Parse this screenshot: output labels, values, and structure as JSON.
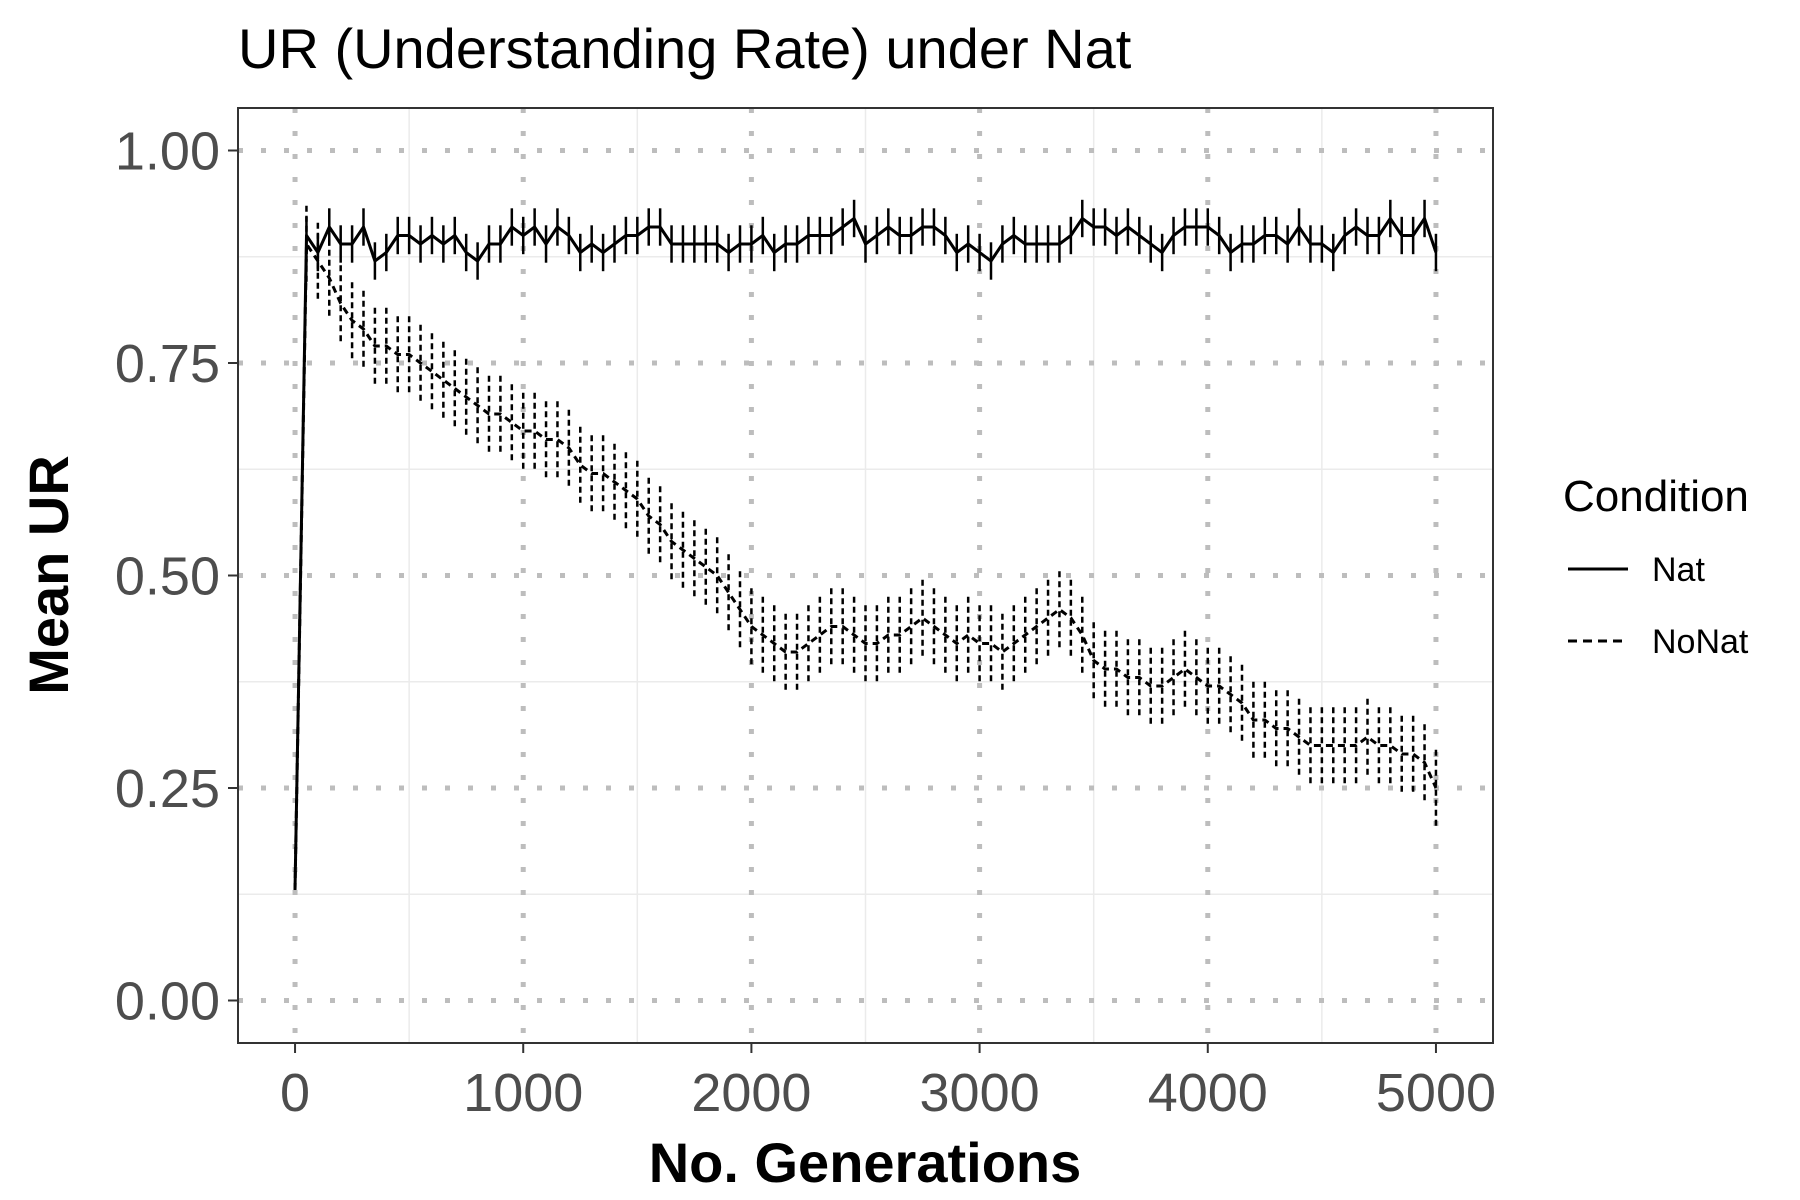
{
  "chart_data": {
    "type": "line",
    "title": "UR (Understanding Rate) under Nat",
    "xlabel": "No. Generations",
    "ylabel": "Mean UR",
    "xlim": [
      -250,
      5250
    ],
    "ylim": [
      -0.05,
      1.05
    ],
    "x_ticks": [
      0,
      1000,
      2000,
      3000,
      4000,
      5000
    ],
    "x_tick_labels": [
      "0",
      "1000",
      "2000",
      "3000",
      "4000",
      "5000"
    ],
    "y_ticks": [
      0.0,
      0.25,
      0.5,
      0.75,
      1.0
    ],
    "y_tick_labels": [
      "0.00",
      "0.25",
      "0.50",
      "0.75",
      "1.00"
    ],
    "grid": true,
    "legend": {
      "title": "Condition",
      "position": "right"
    },
    "series": [
      {
        "name": "Nat",
        "line_style": "solid",
        "error_bar_halfwidth": 0.022,
        "x": [
          0,
          50,
          100,
          150,
          200,
          250,
          300,
          350,
          400,
          450,
          500,
          550,
          600,
          650,
          700,
          750,
          800,
          850,
          900,
          950,
          1000,
          1050,
          1100,
          1150,
          1200,
          1250,
          1300,
          1350,
          1400,
          1450,
          1500,
          1550,
          1600,
          1650,
          1700,
          1750,
          1800,
          1850,
          1900,
          1950,
          2000,
          2050,
          2100,
          2150,
          2200,
          2250,
          2300,
          2350,
          2400,
          2450,
          2500,
          2550,
          2600,
          2650,
          2700,
          2750,
          2800,
          2850,
          2900,
          2950,
          3000,
          3050,
          3100,
          3150,
          3200,
          3250,
          3300,
          3350,
          3400,
          3450,
          3500,
          3550,
          3600,
          3650,
          3700,
          3750,
          3800,
          3850,
          3900,
          3950,
          4000,
          4050,
          4100,
          4150,
          4200,
          4250,
          4300,
          4350,
          4400,
          4450,
          4500,
          4550,
          4600,
          4650,
          4700,
          4750,
          4800,
          4850,
          4900,
          4950,
          5000
        ],
        "y": [
          0.13,
          0.9,
          0.88,
          0.91,
          0.89,
          0.89,
          0.91,
          0.87,
          0.88,
          0.9,
          0.9,
          0.89,
          0.9,
          0.89,
          0.9,
          0.88,
          0.87,
          0.89,
          0.89,
          0.91,
          0.9,
          0.91,
          0.89,
          0.91,
          0.9,
          0.88,
          0.89,
          0.88,
          0.89,
          0.9,
          0.9,
          0.91,
          0.91,
          0.89,
          0.89,
          0.89,
          0.89,
          0.89,
          0.88,
          0.89,
          0.89,
          0.9,
          0.88,
          0.89,
          0.89,
          0.9,
          0.9,
          0.9,
          0.91,
          0.92,
          0.89,
          0.9,
          0.91,
          0.9,
          0.9,
          0.91,
          0.91,
          0.9,
          0.88,
          0.89,
          0.88,
          0.87,
          0.89,
          0.9,
          0.89,
          0.89,
          0.89,
          0.89,
          0.9,
          0.92,
          0.91,
          0.91,
          0.9,
          0.91,
          0.9,
          0.89,
          0.88,
          0.9,
          0.91,
          0.91,
          0.91,
          0.9,
          0.88,
          0.89,
          0.89,
          0.9,
          0.9,
          0.89,
          0.91,
          0.89,
          0.89,
          0.88,
          0.9,
          0.91,
          0.9,
          0.9,
          0.92,
          0.9,
          0.9,
          0.92,
          0.88
        ]
      },
      {
        "name": "NoNat",
        "line_style": "dashed",
        "error_bar_halfwidth": 0.045,
        "x": [
          0,
          50,
          100,
          150,
          200,
          250,
          300,
          350,
          400,
          450,
          500,
          550,
          600,
          650,
          700,
          750,
          800,
          850,
          900,
          950,
          1000,
          1050,
          1100,
          1150,
          1200,
          1250,
          1300,
          1350,
          1400,
          1450,
          1500,
          1550,
          1600,
          1650,
          1700,
          1750,
          1800,
          1850,
          1900,
          1950,
          2000,
          2050,
          2100,
          2150,
          2200,
          2250,
          2300,
          2350,
          2400,
          2450,
          2500,
          2550,
          2600,
          2650,
          2700,
          2750,
          2800,
          2850,
          2900,
          2950,
          3000,
          3050,
          3100,
          3150,
          3200,
          3250,
          3300,
          3350,
          3400,
          3450,
          3500,
          3550,
          3600,
          3650,
          3700,
          3750,
          3800,
          3850,
          3900,
          3950,
          4000,
          4050,
          4100,
          4150,
          4200,
          4250,
          4300,
          4350,
          4400,
          4450,
          4500,
          4550,
          4600,
          4650,
          4700,
          4750,
          4800,
          4850,
          4900,
          4950,
          5000
        ],
        "y": [
          0.13,
          0.89,
          0.87,
          0.85,
          0.82,
          0.8,
          0.79,
          0.77,
          0.77,
          0.76,
          0.76,
          0.75,
          0.74,
          0.73,
          0.72,
          0.71,
          0.7,
          0.69,
          0.69,
          0.68,
          0.67,
          0.67,
          0.66,
          0.66,
          0.65,
          0.63,
          0.62,
          0.62,
          0.61,
          0.6,
          0.59,
          0.57,
          0.56,
          0.54,
          0.53,
          0.52,
          0.51,
          0.5,
          0.48,
          0.46,
          0.44,
          0.43,
          0.42,
          0.41,
          0.41,
          0.42,
          0.43,
          0.44,
          0.44,
          0.43,
          0.42,
          0.42,
          0.43,
          0.43,
          0.44,
          0.45,
          0.44,
          0.43,
          0.42,
          0.43,
          0.42,
          0.42,
          0.41,
          0.42,
          0.43,
          0.44,
          0.45,
          0.46,
          0.45,
          0.43,
          0.4,
          0.39,
          0.39,
          0.38,
          0.38,
          0.37,
          0.37,
          0.38,
          0.39,
          0.38,
          0.37,
          0.37,
          0.36,
          0.35,
          0.33,
          0.33,
          0.32,
          0.32,
          0.31,
          0.3,
          0.3,
          0.3,
          0.3,
          0.3,
          0.31,
          0.3,
          0.3,
          0.29,
          0.29,
          0.28,
          0.25
        ]
      }
    ]
  }
}
